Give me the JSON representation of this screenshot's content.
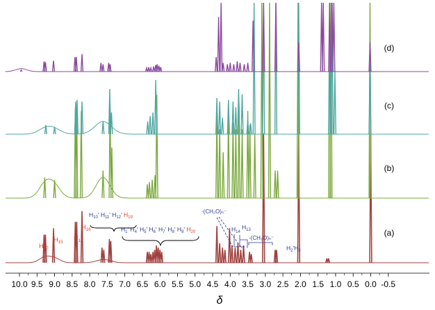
{
  "chart_data": {
    "type": "line",
    "xlabel": "δ",
    "x_unit": "ppm",
    "xlim": [
      10.2,
      -0.6
    ],
    "x_reversed": true,
    "tick_labels": [
      "10.0",
      "9.5",
      "9.0",
      "8.5",
      "8.0",
      "7.5",
      "7.0",
      "6.5",
      "6.0",
      "5.5",
      "5.0",
      "4.5",
      "4.0",
      "3.5",
      "3.0",
      "2.5",
      "2.0",
      "1.5",
      "1.0",
      "0.5",
      "0.0",
      "-0.5"
    ],
    "ticks": [
      10.0,
      9.5,
      9.0,
      8.5,
      8.0,
      7.5,
      7.0,
      6.5,
      6.0,
      5.5,
      5.0,
      4.5,
      4.0,
      3.5,
      3.0,
      2.5,
      2.0,
      1.5,
      1.0,
      0.5,
      0.0,
      -0.5
    ],
    "series": [
      {
        "name": "(a)",
        "color": "#a0413f",
        "peaks": [
          {
            "x": 9.3,
            "y": 0.13
          },
          {
            "x": 9.26,
            "y": 0.13
          },
          {
            "x": 9.03,
            "y": 0.16
          },
          {
            "x": 8.41,
            "y": 0.19
          },
          {
            "x": 8.37,
            "y": 0.19
          },
          {
            "x": 8.22,
            "y": 0.24
          },
          {
            "x": 7.65,
            "y": 0.07
          },
          {
            "x": 7.6,
            "y": 0.06
          },
          {
            "x": 7.44,
            "y": 0.11
          },
          {
            "x": 7.4,
            "y": 0.1
          },
          {
            "x": 6.36,
            "y": 0.05
          },
          {
            "x": 6.31,
            "y": 0.05
          },
          {
            "x": 6.26,
            "y": 0.04
          },
          {
            "x": 6.2,
            "y": 0.05
          },
          {
            "x": 6.15,
            "y": 0.06
          },
          {
            "x": 6.1,
            "y": 0.08
          },
          {
            "x": 6.05,
            "y": 0.07
          },
          {
            "x": 6.0,
            "y": 0.06
          },
          {
            "x": 5.95,
            "y": 0.05
          },
          {
            "x": 4.38,
            "y": 0.17
          },
          {
            "x": 4.3,
            "y": 0.09
          },
          {
            "x": 4.22,
            "y": 0.07
          },
          {
            "x": 4.15,
            "y": 0.06
          },
          {
            "x": 4.02,
            "y": 0.16
          },
          {
            "x": 3.95,
            "y": 0.08
          },
          {
            "x": 3.86,
            "y": 0.07
          },
          {
            "x": 3.78,
            "y": 0.09
          },
          {
            "x": 3.7,
            "y": 0.06
          },
          {
            "x": 3.62,
            "y": 0.08
          },
          {
            "x": 3.45,
            "y": 0.05
          },
          {
            "x": 3.4,
            "y": 0.04
          },
          {
            "x": 3.05,
            "y": 0.6
          },
          {
            "x": 2.72,
            "y": 0.06
          },
          {
            "x": 2.68,
            "y": 0.06
          },
          {
            "x": 2.05,
            "y": 0.6
          },
          {
            "x": 1.25,
            "y": 0.02
          },
          {
            "x": 1.2,
            "y": 0.02
          },
          {
            "x": 0.0,
            "y": 0.6
          }
        ]
      },
      {
        "name": "(b)",
        "color": "#7aa83c",
        "peaks": [
          {
            "x": 9.28,
            "y": 0.09
          },
          {
            "x": 9.0,
            "y": 0.08
          },
          {
            "x": 8.41,
            "y": 0.39
          },
          {
            "x": 8.37,
            "y": 0.39
          },
          {
            "x": 8.24,
            "y": 0.38
          },
          {
            "x": 7.62,
            "y": 0.12
          },
          {
            "x": 7.42,
            "y": 0.4
          },
          {
            "x": 7.37,
            "y": 0.22
          },
          {
            "x": 6.36,
            "y": 0.06
          },
          {
            "x": 6.3,
            "y": 0.07
          },
          {
            "x": 6.22,
            "y": 0.08
          },
          {
            "x": 6.14,
            "y": 0.1
          },
          {
            "x": 6.09,
            "y": 0.45
          },
          {
            "x": 4.38,
            "y": 0.36
          },
          {
            "x": 4.3,
            "y": 0.3
          },
          {
            "x": 4.2,
            "y": 0.2
          },
          {
            "x": 4.05,
            "y": 0.36
          },
          {
            "x": 3.92,
            "y": 0.33
          },
          {
            "x": 3.84,
            "y": 0.3
          },
          {
            "x": 3.75,
            "y": 0.41
          },
          {
            "x": 3.66,
            "y": 0.3
          },
          {
            "x": 3.5,
            "y": 0.38
          },
          {
            "x": 3.44,
            "y": 0.32
          },
          {
            "x": 3.3,
            "y": 0.28
          },
          {
            "x": 3.1,
            "y": 1.0
          },
          {
            "x": 2.88,
            "y": 1.0
          },
          {
            "x": 2.72,
            "y": 0.12
          },
          {
            "x": 2.65,
            "y": 0.12
          },
          {
            "x": 2.07,
            "y": 1.0
          },
          {
            "x": 1.17,
            "y": 1.0
          },
          {
            "x": 1.13,
            "y": 1.0
          },
          {
            "x": 0.02,
            "y": 1.0
          }
        ]
      },
      {
        "name": "(c)",
        "color": "#4fa7a1",
        "peaks": [
          {
            "x": 9.25,
            "y": 0.05
          },
          {
            "x": 9.0,
            "y": 0.04
          },
          {
            "x": 8.4,
            "y": 0.18
          },
          {
            "x": 8.36,
            "y": 0.19
          },
          {
            "x": 8.22,
            "y": 0.18
          },
          {
            "x": 7.62,
            "y": 0.07
          },
          {
            "x": 7.43,
            "y": 0.25
          },
          {
            "x": 7.38,
            "y": 0.12
          },
          {
            "x": 6.35,
            "y": 0.07
          },
          {
            "x": 6.28,
            "y": 0.1
          },
          {
            "x": 6.2,
            "y": 0.12
          },
          {
            "x": 6.12,
            "y": 0.3
          },
          {
            "x": 4.38,
            "y": 0.2
          },
          {
            "x": 4.3,
            "y": 0.18
          },
          {
            "x": 4.22,
            "y": 0.09
          },
          {
            "x": 4.05,
            "y": 0.19
          },
          {
            "x": 3.92,
            "y": 0.18
          },
          {
            "x": 3.84,
            "y": 0.15
          },
          {
            "x": 3.76,
            "y": 0.25
          },
          {
            "x": 3.66,
            "y": 0.22
          },
          {
            "x": 3.5,
            "y": 0.08
          },
          {
            "x": 3.42,
            "y": 0.06
          },
          {
            "x": 3.32,
            "y": 1.0
          },
          {
            "x": 3.05,
            "y": 1.0
          },
          {
            "x": 2.7,
            "y": 1.0
          },
          {
            "x": 2.05,
            "y": 1.0
          },
          {
            "x": 1.17,
            "y": 1.0
          },
          {
            "x": 1.1,
            "y": 1.0
          },
          {
            "x": 1.02,
            "y": 0.35
          },
          {
            "x": 0.02,
            "y": 0.45
          }
        ]
      },
      {
        "name": "(d)",
        "color": "#8b4a9e",
        "peaks": [
          {
            "x": 9.95,
            "y": 0.02
          },
          {
            "x": 9.3,
            "y": 0.14
          },
          {
            "x": 9.26,
            "y": 0.13
          },
          {
            "x": 9.03,
            "y": 0.15
          },
          {
            "x": 8.42,
            "y": 0.2
          },
          {
            "x": 8.38,
            "y": 0.2
          },
          {
            "x": 8.22,
            "y": 0.24
          },
          {
            "x": 7.68,
            "y": 0.12
          },
          {
            "x": 7.62,
            "y": 0.1
          },
          {
            "x": 7.46,
            "y": 0.12
          },
          {
            "x": 7.42,
            "y": 0.1
          },
          {
            "x": 6.38,
            "y": 0.05
          },
          {
            "x": 6.32,
            "y": 0.06
          },
          {
            "x": 6.26,
            "y": 0.05
          },
          {
            "x": 6.18,
            "y": 0.07
          },
          {
            "x": 6.12,
            "y": 0.09
          },
          {
            "x": 6.08,
            "y": 0.1
          },
          {
            "x": 6.03,
            "y": 0.08
          },
          {
            "x": 5.98,
            "y": 0.06
          },
          {
            "x": 4.4,
            "y": 0.2
          },
          {
            "x": 4.33,
            "y": 0.75
          },
          {
            "x": 4.26,
            "y": 1.0
          },
          {
            "x": 4.2,
            "y": 0.12
          },
          {
            "x": 4.08,
            "y": 0.1
          },
          {
            "x": 4.0,
            "y": 0.12
          },
          {
            "x": 3.9,
            "y": 0.1
          },
          {
            "x": 3.8,
            "y": 0.14
          },
          {
            "x": 3.72,
            "y": 0.12
          },
          {
            "x": 3.6,
            "y": 0.1
          },
          {
            "x": 3.5,
            "y": 0.12
          },
          {
            "x": 3.35,
            "y": 0.7
          },
          {
            "x": 3.05,
            "y": 1.0
          },
          {
            "x": 2.7,
            "y": 1.0
          },
          {
            "x": 2.05,
            "y": 0.4
          },
          {
            "x": 1.4,
            "y": 1.0
          },
          {
            "x": 1.35,
            "y": 1.0
          },
          {
            "x": 1.17,
            "y": 1.0
          },
          {
            "x": 1.1,
            "y": 1.0
          },
          {
            "x": 1.05,
            "y": 1.0
          },
          {
            "x": 0.02,
            "y": 0.4
          }
        ]
      }
    ],
    "annotations": {
      "a_red": [
        {
          "id": "H17",
          "main": "H",
          "sub": "17",
          "x": 9.28
        },
        {
          "id": "H15",
          "main": "H",
          "sub": "15",
          "x": 9.03
        },
        {
          "id": "H18",
          "main": "H",
          "sub": "18",
          "x": 8.39
        },
        {
          "id": "H16",
          "main": "H",
          "sub": "16",
          "x": 8.22
        }
      ],
      "upper_group": [
        {
          "main": "H",
          "sub": "10",
          "sep": "'"
        },
        {
          "main": "H",
          "sub": "11",
          "sep": "'"
        },
        {
          "main": "H",
          "sub": "12",
          "sep": "'"
        },
        {
          "main": "H",
          "sub": "19",
          "sep": "",
          "red": true
        }
      ],
      "lower_group": [
        {
          "main": "H",
          "sub": "1",
          "sep": "'"
        },
        {
          "main": "H",
          "sub": "4",
          "sep": "'"
        },
        {
          "main": "H",
          "sub": "5",
          "sep": "'"
        },
        {
          "main": "H",
          "sub": "6",
          "sep": "'"
        },
        {
          "main": "H",
          "sub": "7",
          "sep": "'"
        },
        {
          "main": "H",
          "sub": "8",
          "sep": "'"
        },
        {
          "main": "H",
          "sub": "9",
          "sep": "'"
        },
        {
          "main": "H",
          "sub": "20",
          "sep": "",
          "red": true
        }
      ],
      "ch2o_left": "-(CH₂O)ₙ⁻",
      "ch2o_right": "-(CH₂O)ₙ⁻",
      "H14": {
        "main": "H",
        "sub": "14"
      },
      "H13": {
        "main": "H",
        "sub": "13"
      },
      "H2H3": {
        "a": "H",
        "as": "2",
        "mid": "'H",
        "bs": "3"
      }
    }
  }
}
